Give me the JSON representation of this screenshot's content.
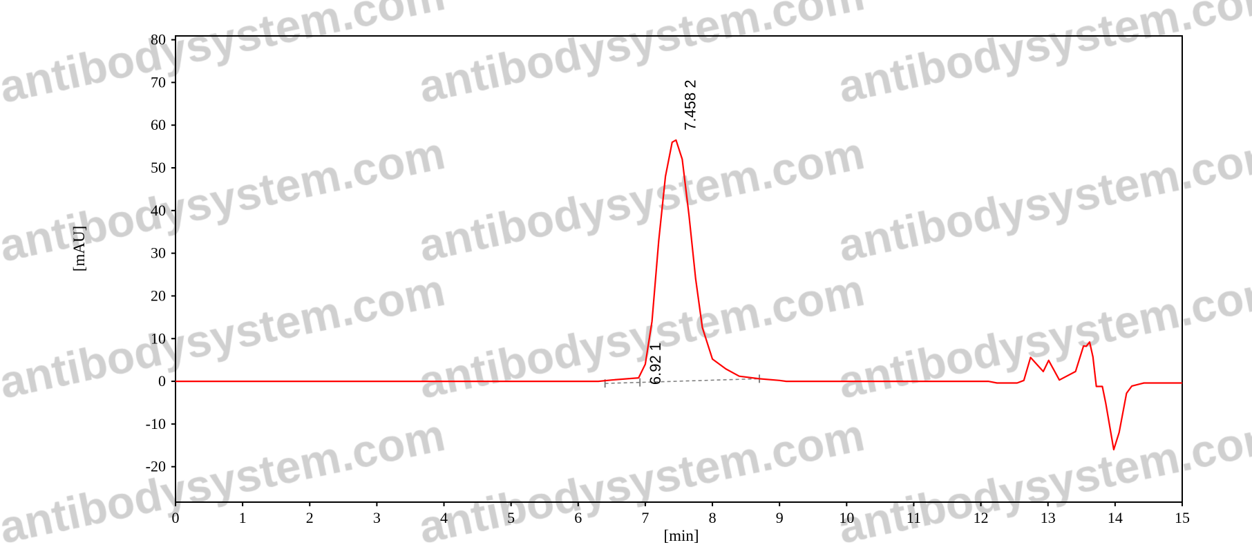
{
  "watermark": "antibodysystem.com",
  "chart_data": {
    "type": "line",
    "xlabel": "[min]",
    "ylabel": "[mAU]",
    "xlim": [
      0,
      15
    ],
    "ylim": [
      -28.3,
      80.9
    ],
    "xticks": [
      0,
      1,
      2,
      3,
      4,
      5,
      6,
      7,
      8,
      9,
      10,
      11,
      12,
      13,
      14,
      15
    ],
    "yticks": [
      -20,
      -10,
      0,
      10,
      20,
      30,
      40,
      50,
      60,
      70,
      80
    ],
    "grid": false,
    "line_color": "#ff0000",
    "series": [
      {
        "x": [
          0,
          6.3,
          6.5,
          6.9,
          7.0,
          7.1,
          7.2,
          7.3,
          7.4,
          7.458,
          7.55,
          7.65,
          7.75,
          7.85,
          8.0,
          8.2,
          8.4,
          8.7,
          9.0,
          9.1,
          12.11,
          12.24,
          12.54,
          12.64,
          12.74,
          12.93,
          13.01,
          13.17,
          13.41,
          13.53,
          13.57,
          13.62,
          13.67,
          13.72,
          13.81,
          13.86,
          13.98,
          14.06,
          14.17,
          14.25,
          14.43,
          15
        ],
        "y": [
          0,
          0,
          0.3,
          0.8,
          4,
          14,
          33,
          48,
          56,
          56.5,
          52,
          39,
          24,
          12.6,
          5.2,
          2.9,
          1.2,
          0.6,
          0.2,
          0,
          0,
          -0.4,
          -0.4,
          0.2,
          5.6,
          2.3,
          4.9,
          0.3,
          2.3,
          8.3,
          8.2,
          9.2,
          5.7,
          -1.2,
          -1.2,
          -5.1,
          -16.0,
          -12,
          -2.8,
          -1.1,
          -0.4,
          -0.4
        ]
      }
    ],
    "baseline": {
      "x": [
        6.4,
        8.7
      ],
      "y": [
        -0.5,
        0.6
      ],
      "color": "#808080",
      "marks_x": [
        6.4,
        6.92,
        8.7
      ]
    },
    "peaks": [
      {
        "label": "6.92 1",
        "rt": 6.92,
        "y": 0.8
      },
      {
        "label": "7.458 2",
        "rt": 7.458,
        "y": 56.5
      }
    ]
  }
}
